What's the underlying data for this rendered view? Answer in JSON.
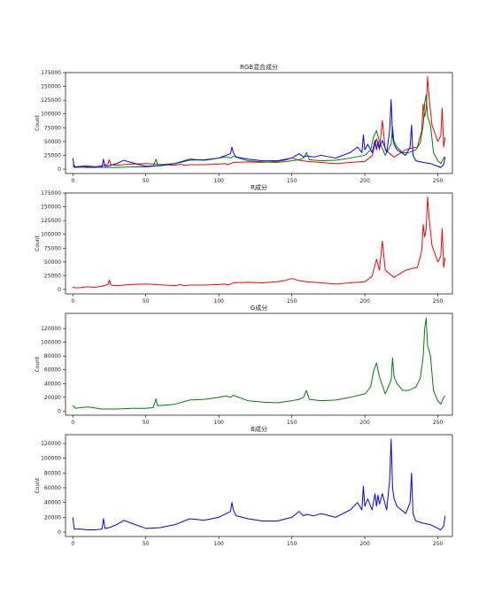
{
  "figure": {
    "background": "#ffffff"
  },
  "chart_data": [
    {
      "type": "line",
      "title": "RGB混合成分",
      "xlabel": "",
      "ylabel": "Count",
      "xlim": [
        -5,
        260
      ],
      "ylim": [
        -8000,
        175000
      ],
      "xticks": [
        0,
        50,
        100,
        150,
        200,
        250
      ],
      "yticks": [
        0,
        25000,
        50000,
        75000,
        100000,
        125000,
        150000,
        175000
      ],
      "grid": false,
      "series": [
        {
          "color": "#ff0000",
          "x": [
            0,
            2,
            5,
            10,
            15,
            20,
            24,
            25,
            26,
            30,
            40,
            50,
            60,
            70,
            74,
            76,
            80,
            90,
            100,
            104,
            106,
            110,
            120,
            130,
            140,
            145,
            150,
            155,
            160,
            170,
            180,
            190,
            200,
            205,
            208,
            210,
            212,
            214,
            220,
            225,
            228,
            232,
            236,
            239,
            240,
            241,
            242,
            243,
            244,
            246,
            250,
            252,
            253,
            254,
            255
          ],
          "y": [
            4000,
            3000,
            3500,
            5000,
            4000,
            6000,
            9000,
            17000,
            8000,
            7000,
            9000,
            10000,
            8500,
            7000,
            9000,
            7000,
            8000,
            8000,
            9000,
            10000,
            8000,
            12000,
            13000,
            12000,
            14000,
            16000,
            20000,
            16000,
            14000,
            12000,
            10000,
            12000,
            14000,
            24000,
            55000,
            35000,
            88000,
            35000,
            22000,
            30000,
            35000,
            38000,
            40000,
            70000,
            118000,
            95000,
            110000,
            168000,
            130000,
            80000,
            50000,
            60000,
            110000,
            40000,
            58000
          ]
        },
        {
          "color": "#008000",
          "x": [
            0,
            2,
            5,
            10,
            20,
            30,
            40,
            50,
            55,
            57,
            58,
            60,
            70,
            80,
            90,
            100,
            105,
            108,
            110,
            120,
            130,
            140,
            150,
            155,
            158,
            160,
            162,
            170,
            180,
            190,
            200,
            204,
            206,
            208,
            210,
            214,
            216,
            218,
            219,
            220,
            222,
            226,
            230,
            235,
            238,
            240,
            241,
            242,
            243,
            245,
            247,
            250,
            252,
            254,
            255
          ],
          "y": [
            8000,
            4000,
            5000,
            6000,
            3000,
            3000,
            4000,
            4000,
            5000,
            18000,
            8000,
            8000,
            10000,
            16000,
            17000,
            20000,
            22000,
            20000,
            23000,
            15000,
            13000,
            12000,
            15000,
            17000,
            20000,
            30000,
            17000,
            15000,
            16000,
            20000,
            25000,
            35000,
            58000,
            70000,
            50000,
            25000,
            35000,
            45000,
            77000,
            50000,
            40000,
            30000,
            30000,
            35000,
            48000,
            80000,
            120000,
            135000,
            95000,
            80000,
            30000,
            15000,
            10000,
            20000,
            22000
          ]
        },
        {
          "color": "#0000ff",
          "x": [
            0,
            1,
            5,
            10,
            15,
            20,
            21,
            22,
            25,
            30,
            35,
            40,
            50,
            60,
            70,
            80,
            90,
            100,
            108,
            109,
            110,
            111,
            112,
            120,
            130,
            140,
            150,
            155,
            158,
            160,
            165,
            170,
            180,
            190,
            195,
            198,
            199,
            200,
            202,
            205,
            207,
            208,
            209,
            210,
            212,
            215,
            217,
            218,
            219,
            220,
            222,
            225,
            228,
            231,
            232,
            233,
            235,
            240,
            245,
            250,
            252,
            254,
            255
          ],
          "y": [
            20000,
            4000,
            4000,
            3000,
            3000,
            4000,
            18000,
            5000,
            6000,
            10000,
            16000,
            12000,
            5000,
            6000,
            10000,
            18000,
            16000,
            20000,
            28000,
            40000,
            30000,
            25000,
            22000,
            18000,
            15000,
            15000,
            20000,
            28000,
            22000,
            24000,
            22000,
            25000,
            20000,
            30000,
            40000,
            30000,
            62000,
            35000,
            45000,
            30000,
            52000,
            35000,
            50000,
            38000,
            52000,
            30000,
            70000,
            126000,
            60000,
            45000,
            35000,
            30000,
            25000,
            40000,
            80000,
            25000,
            15000,
            12000,
            10000,
            5000,
            3000,
            8000,
            22000
          ]
        }
      ]
    },
    {
      "type": "line",
      "title": "R成分",
      "xlabel": "",
      "ylabel": "Count",
      "xlim": [
        -5,
        260
      ],
      "ylim": [
        -8000,
        175000
      ],
      "xticks": [
        0,
        50,
        100,
        150,
        200,
        250
      ],
      "yticks": [
        0,
        25000,
        50000,
        75000,
        100000,
        125000,
        150000,
        175000
      ],
      "grid": false,
      "series": [
        {
          "color": "#ff0000",
          "x": [
            0,
            2,
            5,
            10,
            15,
            20,
            24,
            25,
            26,
            30,
            40,
            50,
            60,
            70,
            74,
            76,
            80,
            90,
            100,
            104,
            106,
            110,
            120,
            130,
            140,
            145,
            150,
            155,
            160,
            170,
            180,
            190,
            200,
            205,
            208,
            210,
            212,
            214,
            220,
            225,
            228,
            232,
            236,
            239,
            240,
            241,
            242,
            243,
            244,
            246,
            250,
            252,
            253,
            254,
            255
          ],
          "y": [
            4000,
            3000,
            3500,
            5000,
            4000,
            6000,
            9000,
            17000,
            8000,
            7000,
            9000,
            10000,
            8500,
            7000,
            9000,
            7000,
            8000,
            8000,
            9000,
            10000,
            8000,
            12000,
            13000,
            12000,
            14000,
            16000,
            20000,
            16000,
            14000,
            12000,
            10000,
            12000,
            14000,
            24000,
            55000,
            35000,
            88000,
            35000,
            22000,
            30000,
            35000,
            38000,
            40000,
            70000,
            118000,
            95000,
            110000,
            168000,
            130000,
            80000,
            50000,
            60000,
            110000,
            40000,
            58000
          ]
        }
      ]
    },
    {
      "type": "line",
      "title": "G成分",
      "xlabel": "",
      "ylabel": "Count",
      "xlim": [
        -5,
        260
      ],
      "ylim": [
        -6000,
        142000
      ],
      "xticks": [
        0,
        50,
        100,
        150,
        200,
        250
      ],
      "yticks": [
        0,
        20000,
        40000,
        60000,
        80000,
        100000,
        120000
      ],
      "grid": false,
      "series": [
        {
          "color": "#008000",
          "x": [
            0,
            2,
            5,
            10,
            20,
            30,
            40,
            50,
            55,
            57,
            58,
            60,
            70,
            80,
            90,
            100,
            105,
            108,
            110,
            120,
            130,
            140,
            150,
            155,
            158,
            160,
            162,
            170,
            180,
            190,
            200,
            204,
            206,
            208,
            210,
            214,
            216,
            218,
            219,
            220,
            222,
            226,
            230,
            235,
            238,
            240,
            241,
            242,
            243,
            245,
            247,
            250,
            252,
            254,
            255
          ],
          "y": [
            8000,
            4000,
            5000,
            6000,
            3000,
            3000,
            4000,
            4000,
            5000,
            18000,
            8000,
            8000,
            10000,
            16000,
            17000,
            20000,
            22000,
            20000,
            23000,
            15000,
            13000,
            12000,
            15000,
            17000,
            20000,
            30000,
            17000,
            15000,
            16000,
            20000,
            25000,
            35000,
            58000,
            70000,
            50000,
            25000,
            35000,
            45000,
            77000,
            50000,
            40000,
            30000,
            30000,
            35000,
            48000,
            80000,
            120000,
            135000,
            95000,
            80000,
            30000,
            15000,
            10000,
            20000,
            22000
          ]
        }
      ]
    },
    {
      "type": "line",
      "title": "B成分",
      "xlabel": "",
      "ylabel": "Count",
      "xlim": [
        -5,
        260
      ],
      "ylim": [
        -6000,
        132000
      ],
      "xticks": [
        0,
        50,
        100,
        150,
        200,
        250
      ],
      "yticks": [
        0,
        20000,
        40000,
        60000,
        80000,
        100000,
        120000
      ],
      "grid": false,
      "series": [
        {
          "color": "#0000ff",
          "x": [
            0,
            1,
            5,
            10,
            15,
            20,
            21,
            22,
            25,
            30,
            35,
            40,
            50,
            60,
            70,
            80,
            90,
            100,
            108,
            109,
            110,
            111,
            112,
            120,
            130,
            140,
            150,
            155,
            158,
            160,
            165,
            170,
            180,
            190,
            195,
            198,
            199,
            200,
            202,
            205,
            207,
            208,
            209,
            210,
            212,
            215,
            217,
            218,
            219,
            220,
            222,
            225,
            228,
            231,
            232,
            233,
            235,
            240,
            245,
            250,
            252,
            254,
            255
          ],
          "y": [
            20000,
            4000,
            4000,
            3000,
            3000,
            4000,
            18000,
            5000,
            6000,
            10000,
            16000,
            12000,
            5000,
            6000,
            10000,
            18000,
            16000,
            20000,
            28000,
            40000,
            30000,
            25000,
            22000,
            18000,
            15000,
            15000,
            20000,
            28000,
            22000,
            24000,
            22000,
            25000,
            20000,
            30000,
            40000,
            30000,
            62000,
            35000,
            45000,
            30000,
            52000,
            35000,
            50000,
            38000,
            52000,
            30000,
            70000,
            126000,
            60000,
            45000,
            35000,
            30000,
            25000,
            40000,
            80000,
            25000,
            15000,
            12000,
            10000,
            5000,
            3000,
            8000,
            22000
          ]
        }
      ]
    }
  ]
}
